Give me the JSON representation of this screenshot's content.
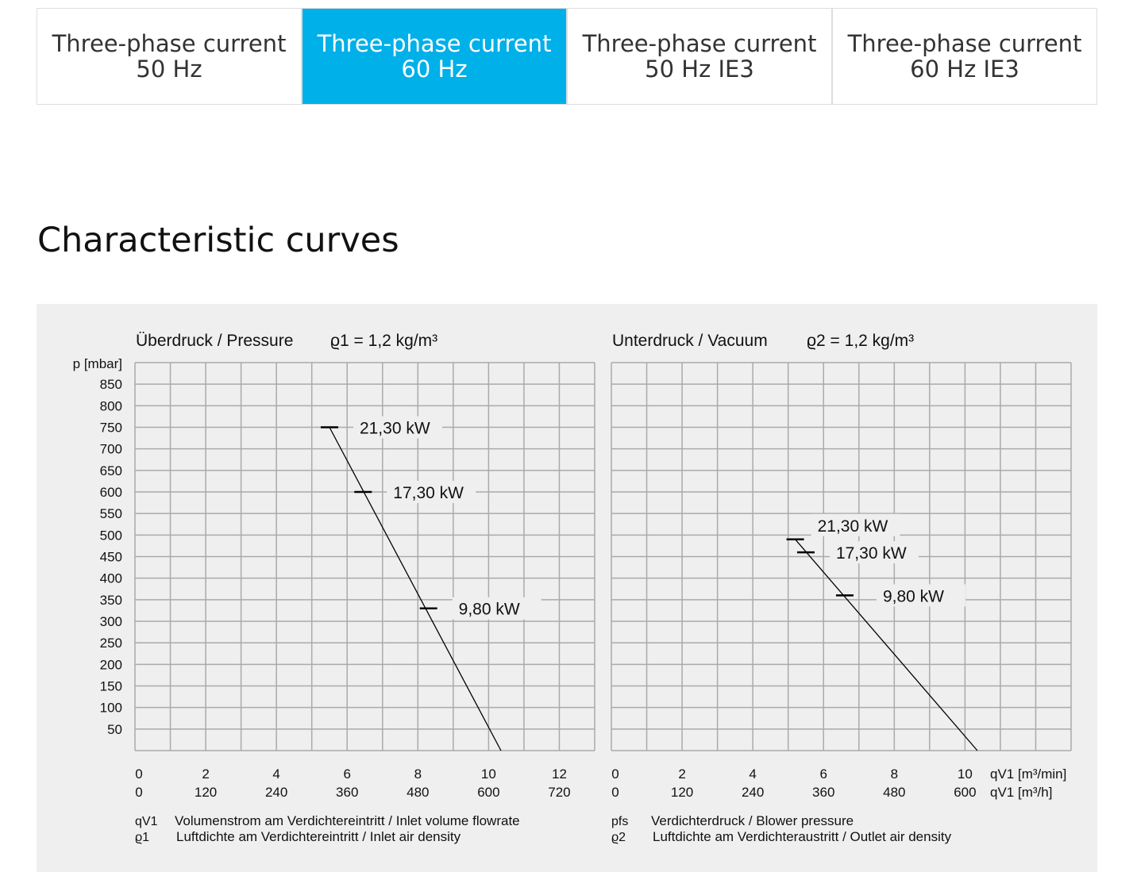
{
  "tabs": [
    {
      "line1": "Three-phase current",
      "line2": "50 Hz",
      "active": false
    },
    {
      "line1": "Three-phase current",
      "line2": "60 Hz",
      "active": true
    },
    {
      "line1": "Three-phase current",
      "line2": "50 Hz IE3",
      "active": false
    },
    {
      "line1": "Three-phase current",
      "line2": "60 Hz IE3",
      "active": false
    }
  ],
  "heading": "Characteristic curves",
  "colors": {
    "accent": "#00b0e8",
    "panel": "#efefef",
    "grid": "#aaaaaa"
  },
  "chart_data": [
    {
      "type": "line",
      "title": "Überdruck / Pressure",
      "density": "ϱ1 = 1,2 kg/m³",
      "ylabel": "p [mbar]",
      "xlim": [
        0,
        13
      ],
      "ylim": [
        0,
        900
      ],
      "grid": true,
      "yticks": [
        50,
        100,
        150,
        200,
        250,
        300,
        350,
        400,
        450,
        500,
        550,
        600,
        650,
        700,
        750,
        800,
        850
      ],
      "xticks_min": [
        0,
        2,
        4,
        6,
        8,
        10,
        12
      ],
      "xticks_h": [
        0,
        120,
        240,
        360,
        480,
        600,
        720
      ],
      "curve": [
        [
          5.5,
          750
        ],
        [
          10.35,
          0
        ]
      ],
      "markers": [
        {
          "x": 5.5,
          "y": 750,
          "label": "21,30 kW"
        },
        {
          "x": 6.45,
          "y": 600,
          "label": "17,30 kW"
        },
        {
          "x": 8.3,
          "y": 330,
          "label": "9,80 kW"
        }
      ],
      "legend": [
        {
          "sym": "qV1",
          "text": "Volumenstrom am Verdichtereintritt / Inlet volume flowrate"
        },
        {
          "sym": "ϱ1",
          "text": "Luftdichte am Verdichtereintritt / Inlet air density"
        }
      ]
    },
    {
      "type": "line",
      "title": "Unterdruck / Vacuum",
      "density": "ϱ2 = 1,2 kg/m³",
      "xlim": [
        0,
        13
      ],
      "ylim": [
        0,
        900
      ],
      "grid": true,
      "xticks_min": [
        0,
        2,
        4,
        6,
        8,
        10
      ],
      "xticks_h": [
        0,
        120,
        240,
        360,
        480,
        600
      ],
      "xunit_min": "qV1 [m³/min]",
      "xunit_h": "qV1 [m³/h]",
      "curve": [
        [
          5.2,
          490
        ],
        [
          10.35,
          0
        ]
      ],
      "markers": [
        {
          "x": 5.2,
          "y": 490,
          "label": "21,30 kW"
        },
        {
          "x": 5.5,
          "y": 460,
          "label": "17,30 kW"
        },
        {
          "x": 6.6,
          "y": 360,
          "label": "9,80 kW"
        }
      ],
      "legend": [
        {
          "sym": "pfs",
          "text": "Verdichterdruck / Blower pressure"
        },
        {
          "sym": "ϱ2",
          "text": "Luftdichte am Verdichteraustritt / Outlet air density"
        }
      ]
    }
  ]
}
